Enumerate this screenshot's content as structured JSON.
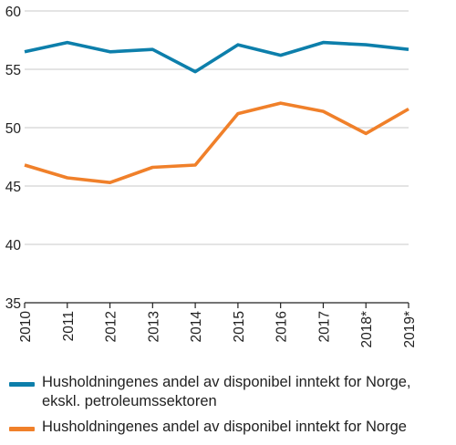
{
  "chart_data": {
    "type": "line",
    "categories": [
      "2010",
      "2011",
      "2012",
      "2013",
      "2014",
      "2015",
      "2016",
      "2017",
      "2018*",
      "2019*"
    ],
    "ylim": [
      35,
      60
    ],
    "yticks": [
      35,
      40,
      45,
      50,
      55,
      60
    ],
    "grid": true,
    "legend_position": "bottom",
    "series": [
      {
        "name": "Husholdningenes andel av disponibel inntekt for Norge,\nekskl. petroleumssektoren",
        "color": "#0d7fab",
        "values": [
          56.5,
          57.3,
          56.5,
          56.7,
          54.8,
          57.1,
          56.2,
          57.3,
          57.1,
          56.7
        ]
      },
      {
        "name": "Husholdningenes andel av disponibel inntekt for Norge",
        "color": "#f0802a",
        "values": [
          46.8,
          45.7,
          45.3,
          46.6,
          46.8,
          51.2,
          52.1,
          51.4,
          49.5,
          51.6
        ]
      }
    ]
  }
}
